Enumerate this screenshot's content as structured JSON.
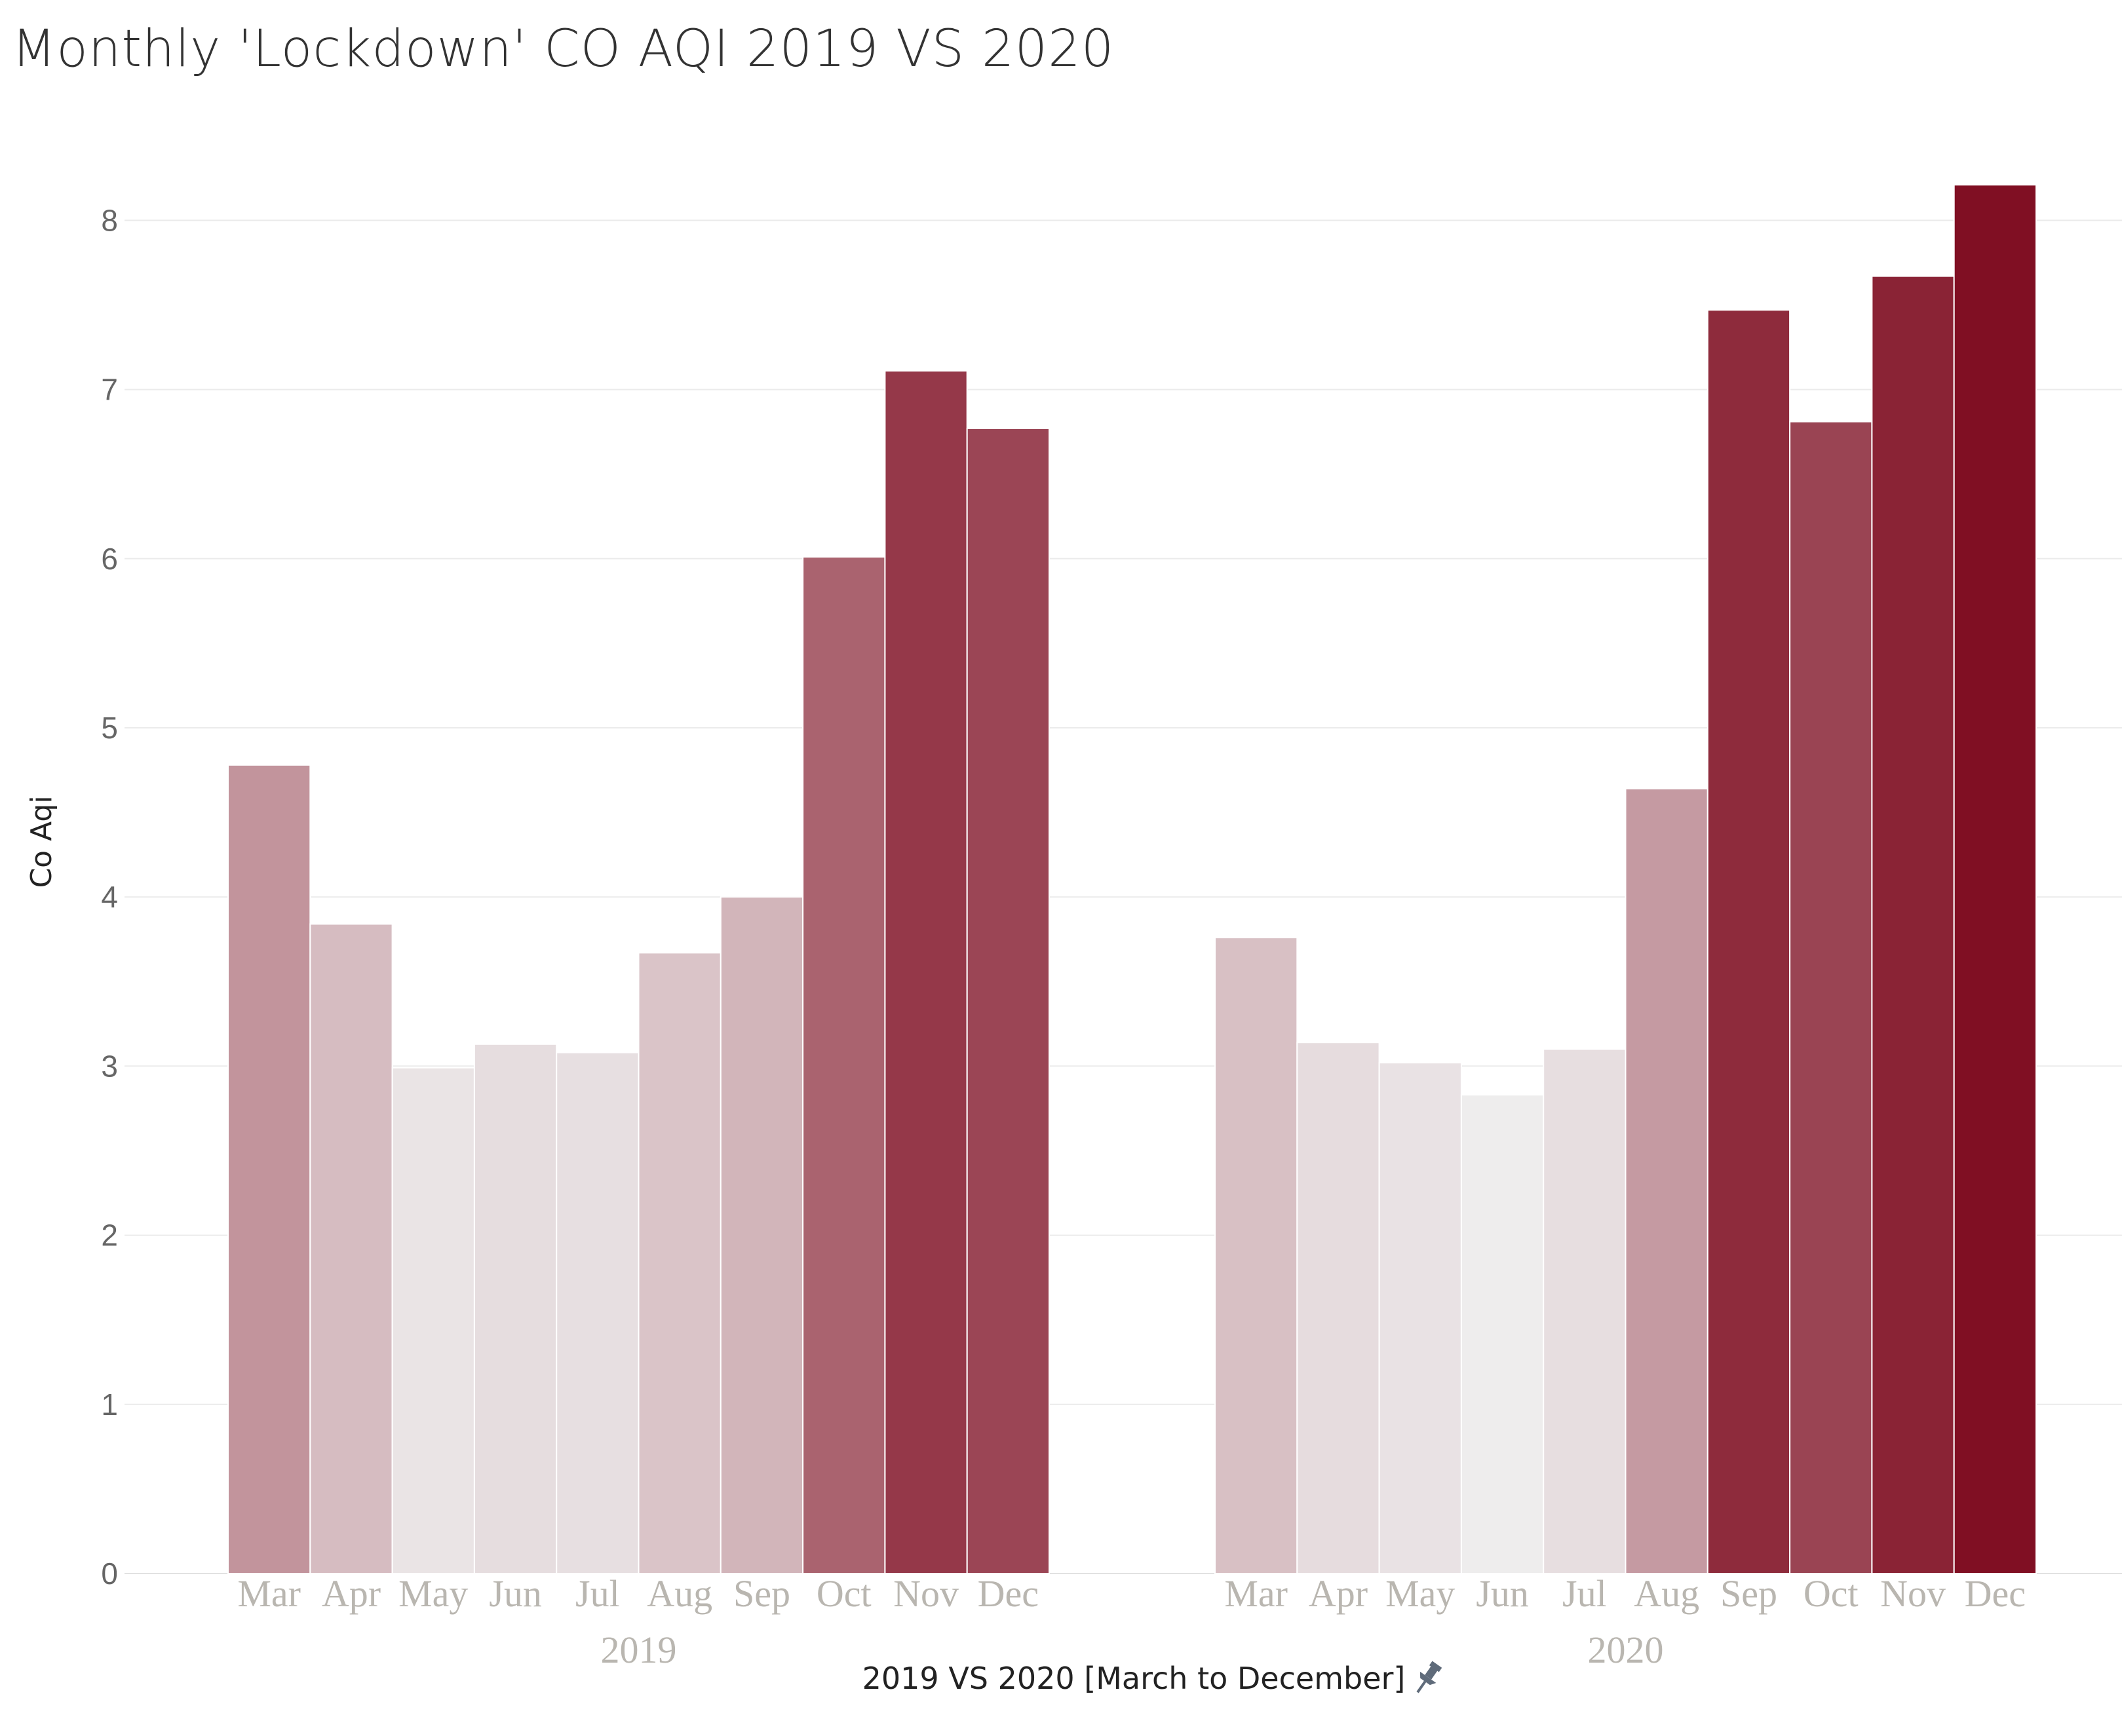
{
  "page": {
    "title": "Monthly 'Lockdown' CO AQI 2019 VS 2020"
  },
  "chart_data": {
    "type": "bar",
    "title": "Monthly 'Lockdown' CO AQI 2019 VS 2020",
    "xlabel": "2019 VS 2020 [March to December]",
    "ylabel": "Co Aqi",
    "ylim": [
      0,
      8.2
    ],
    "yticks": [
      "0",
      "1",
      "2",
      "3",
      "4",
      "5",
      "6",
      "7",
      "8"
    ],
    "grid": true,
    "color_scale": {
      "low": "#efefef",
      "high": "#800f23"
    },
    "groups": [
      {
        "name": "2019",
        "categories": [
          "Mar",
          "Apr",
          "May",
          "Jun",
          "Jul",
          "Aug",
          "Sep",
          "Oct",
          "Nov",
          "Dec"
        ],
        "values": [
          4.78,
          3.84,
          2.99,
          3.13,
          3.08,
          3.67,
          4.0,
          6.01,
          7.11,
          6.77
        ]
      },
      {
        "name": "2020",
        "categories": [
          "Mar",
          "Apr",
          "May",
          "Jun",
          "Jul",
          "Aug",
          "Sep",
          "Oct",
          "Nov",
          "Dec"
        ],
        "values": [
          3.76,
          3.14,
          3.02,
          2.83,
          3.1,
          4.64,
          7.47,
          6.81,
          7.67,
          8.21
        ]
      }
    ]
  }
}
